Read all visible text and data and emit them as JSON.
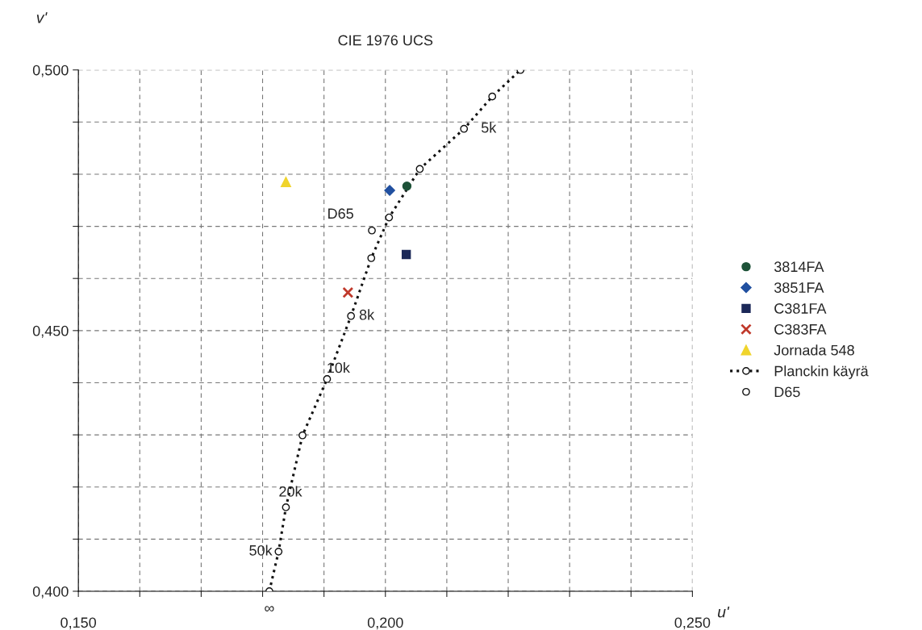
{
  "chart_data": {
    "type": "scatter",
    "title": "CIE 1976 UCS",
    "xlabel": "u'",
    "ylabel": "v'",
    "xlim": [
      0.15,
      0.25
    ],
    "ylim": [
      0.4,
      0.5
    ],
    "xticks": [
      {
        "value": 0.15,
        "label": "0,150"
      },
      {
        "value": 0.16,
        "label": null
      },
      {
        "value": 0.17,
        "label": null
      },
      {
        "value": 0.18,
        "label": null
      },
      {
        "value": 0.19,
        "label": null
      },
      {
        "value": 0.2,
        "label": "0,200"
      },
      {
        "value": 0.21,
        "label": null
      },
      {
        "value": 0.22,
        "label": null
      },
      {
        "value": 0.23,
        "label": null
      },
      {
        "value": 0.24,
        "label": null
      },
      {
        "value": 0.25,
        "label": "0,250"
      }
    ],
    "yticks": [
      {
        "value": 0.4,
        "label": "0,400"
      },
      {
        "value": 0.41,
        "label": null
      },
      {
        "value": 0.42,
        "label": null
      },
      {
        "value": 0.43,
        "label": null
      },
      {
        "value": 0.44,
        "label": null
      },
      {
        "value": 0.45,
        "label": "0,450"
      },
      {
        "value": 0.46,
        "label": null
      },
      {
        "value": 0.47,
        "label": null
      },
      {
        "value": 0.48,
        "label": null
      },
      {
        "value": 0.49,
        "label": null
      },
      {
        "value": 0.5,
        "label": "0,500"
      }
    ],
    "grid": true,
    "legend": "right",
    "series": [
      {
        "name": "3814FA",
        "type": "scatter",
        "marker": "circle",
        "color": "#1d5238",
        "x": [
          0.2035
        ],
        "values": [
          0.4777
        ]
      },
      {
        "name": "3851FA",
        "type": "scatter",
        "marker": "diamond",
        "color": "#2150a0",
        "x": [
          0.2007
        ],
        "values": [
          0.4769
        ]
      },
      {
        "name": "C381FA",
        "type": "scatter",
        "marker": "square",
        "color": "#1b2858",
        "x": [
          0.2034
        ],
        "values": [
          0.4646
        ]
      },
      {
        "name": "C383FA",
        "type": "scatter",
        "marker": "cross",
        "color": "#c0392b",
        "x": [
          0.1939
        ],
        "values": [
          0.4573
        ]
      },
      {
        "name": "Jornada 548",
        "type": "scatter",
        "marker": "triangle",
        "color": "#f0d42c",
        "x": [
          0.1838
        ],
        "values": [
          0.4785
        ]
      },
      {
        "name": "Planckin käyrä",
        "type": "line",
        "marker": "circle",
        "line_style": "dotted",
        "color": "#111111",
        "x": [
          0.1811,
          0.1826,
          0.1838,
          0.1865,
          0.1905,
          0.1944,
          0.1977,
          0.2006,
          0.2056,
          0.2128,
          0.2174,
          0.222
        ],
        "values": [
          0.4,
          0.4076,
          0.4161,
          0.4299,
          0.4407,
          0.4528,
          0.4639,
          0.4717,
          0.481,
          0.4887,
          0.4949,
          0.5
        ]
      },
      {
        "name": "D65",
        "type": "line",
        "marker": "circle",
        "color": "#111111",
        "x": [
          0.1978
        ],
        "values": [
          0.4692
        ]
      }
    ],
    "annotations": [
      {
        "text": "∞",
        "x": 0.1811,
        "y": 0.4
      },
      {
        "text": "50k",
        "x": 0.1826,
        "y": 0.4076
      },
      {
        "text": "20k",
        "x": 0.1838,
        "y": 0.4161
      },
      {
        "text": "10k",
        "x": 0.1905,
        "y": 0.4407
      },
      {
        "text": "8k",
        "x": 0.1944,
        "y": 0.4528
      },
      {
        "text": "5k",
        "x": 0.2128,
        "y": 0.4887
      },
      {
        "text": "D65",
        "x": 0.1978,
        "y": 0.4692
      }
    ]
  }
}
